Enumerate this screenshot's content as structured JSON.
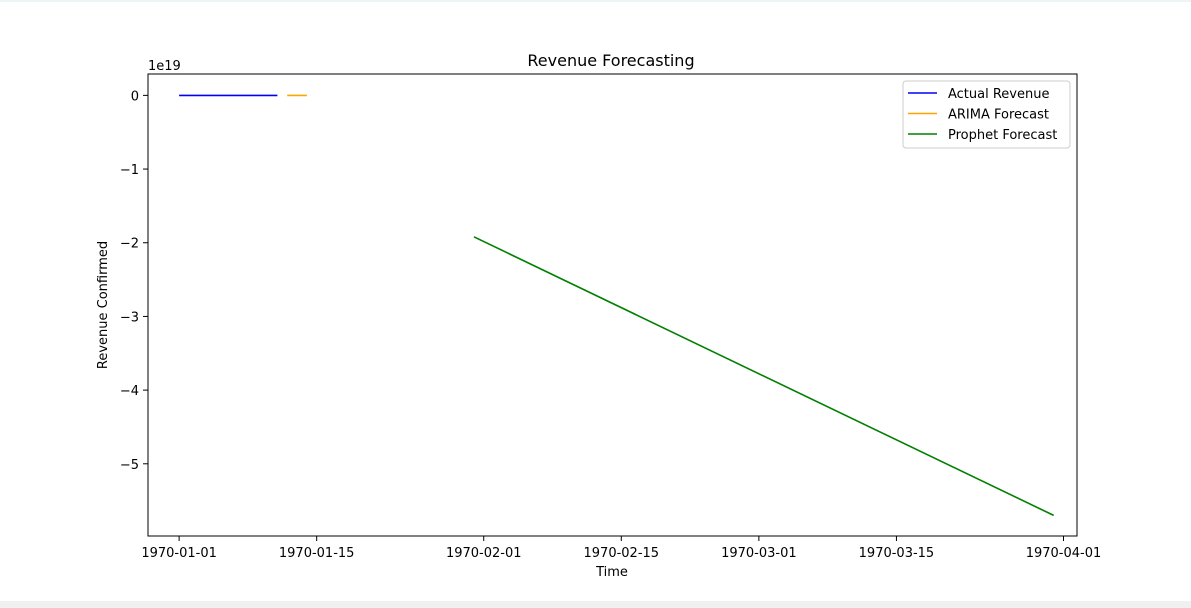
{
  "chart_data": {
    "type": "line",
    "title": "Revenue Forecasting",
    "xlabel": "Time",
    "ylabel": "Revenue Confirmed",
    "y_offset_label": "1e19",
    "x_scale": "date",
    "xlim": [
      "1969-12-28T20:00:00",
      "1970-04-02T09:00:00"
    ],
    "ylim": [
      -5.98,
      0.29
    ],
    "x_ticks": [
      "1970-01-01",
      "1970-01-15",
      "1970-02-01",
      "1970-02-15",
      "1970-03-01",
      "1970-03-15",
      "1970-04-01"
    ],
    "y_ticks": [
      0,
      -1,
      -2,
      -3,
      -4,
      -5
    ],
    "y_tick_labels": [
      "0",
      "−1",
      "−2",
      "−3",
      "−4",
      "−5"
    ],
    "grid": false,
    "legend_position": "top-right",
    "series": [
      {
        "name": "Actual Revenue",
        "color": "#0000ff",
        "points": [
          [
            "1970-01-01",
            0
          ],
          [
            "1970-01-11",
            0
          ]
        ]
      },
      {
        "name": "ARIMA Forecast",
        "color": "#ffa500",
        "points": [
          [
            "1970-01-12",
            0
          ],
          [
            "1970-01-14",
            0
          ]
        ]
      },
      {
        "name": "Prophet Forecast",
        "color": "#008000",
        "points": [
          [
            "1970-01-31",
            -1.92
          ],
          [
            "1970-03-31",
            -5.7
          ]
        ]
      }
    ]
  }
}
